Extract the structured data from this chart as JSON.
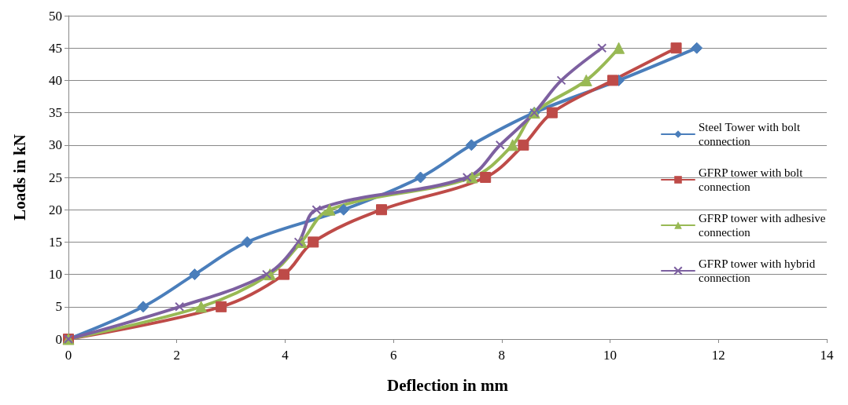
{
  "chart_data": {
    "type": "line",
    "xlabel": "Deflection in mm",
    "ylabel": "Loads in kN",
    "xlim": [
      0,
      14
    ],
    "xticks": [
      0,
      2,
      4,
      6,
      8,
      10,
      12,
      14
    ],
    "ylim": [
      0,
      50
    ],
    "yticks": [
      0,
      5,
      10,
      15,
      20,
      25,
      30,
      35,
      40,
      45,
      50
    ],
    "grid": "y",
    "legend": "right",
    "line_style": "solid",
    "series": [
      {
        "name": "Steel Tower with bolt connection",
        "color": "#4a7ebb",
        "marker": "diamond",
        "x": [
          0,
          1.38,
          2.33,
          3.3,
          5.08,
          6.5,
          7.44,
          8.6,
          10.16,
          11.6
        ],
        "values": [
          0,
          5,
          10,
          15,
          20,
          25,
          30,
          35,
          40,
          45
        ]
      },
      {
        "name": "GFRP tower with bolt connection",
        "color": "#be4b48",
        "marker": "square",
        "x": [
          0,
          2.82,
          3.98,
          4.52,
          5.78,
          7.7,
          8.4,
          8.93,
          10.05,
          11.22
        ],
        "values": [
          0,
          5,
          10,
          15,
          20,
          25,
          30,
          35,
          40,
          45
        ]
      },
      {
        "name": "GFRP tower with adhesive connection",
        "color": "#98b954",
        "marker": "triangle",
        "x": [
          0,
          2.45,
          3.72,
          4.3,
          4.82,
          7.45,
          8.2,
          8.6,
          9.56,
          10.16
        ],
        "values": [
          0,
          5,
          10,
          15,
          20,
          25,
          30,
          35,
          40,
          45
        ]
      },
      {
        "name": "GFRP tower with hybrid connection",
        "color": "#7d60a0",
        "marker": "cross",
        "x": [
          0,
          2.05,
          3.66,
          4.25,
          4.58,
          7.36,
          7.97,
          8.6,
          9.1,
          9.85
        ],
        "values": [
          0,
          5,
          10,
          15,
          20,
          25,
          30,
          35,
          40,
          45
        ]
      }
    ]
  }
}
